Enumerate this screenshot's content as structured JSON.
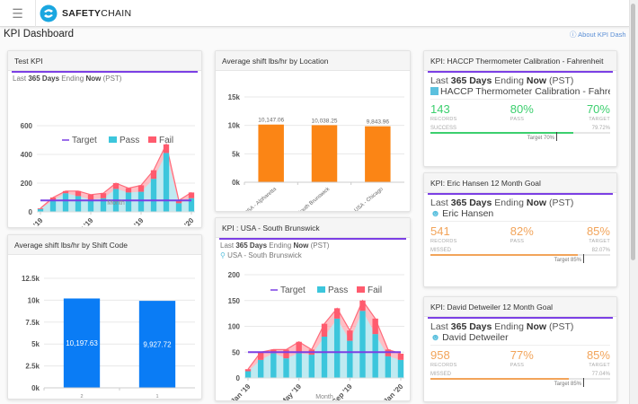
{
  "app": {
    "brand_bold": "SAFETY",
    "brand_light": "CHAIN",
    "menu_icon": "hamburger-icon",
    "logo_icon": "safetychain-logo-icon"
  },
  "page": {
    "title": "KPI Dashboard",
    "about_label": "About KPI Dash",
    "about_icon": "help-circle-icon"
  },
  "colors": {
    "accent": "#7b3fe4",
    "pass": "#3cc6dc",
    "fail": "#ff5b6e",
    "target": "#7b3fe4",
    "blue_bar": "#0a7cf5",
    "orange_bar": "#fb8515",
    "success": "#3ccf6e",
    "missed": "#f2a45a"
  },
  "cards": {
    "test_kpi": {
      "title": "Test KPI",
      "range_prefix": "Last",
      "range_bold": "365 Days",
      "range_mid": "Ending",
      "range_end": "Now",
      "tz": "(PST)"
    },
    "shift_code": {
      "title": "Average shift lbs/hr by Shift Code"
    },
    "location": {
      "title": "Average shift lbs/hr by Location"
    },
    "south_brunswick": {
      "title": "KPI : USA - South Brunswick",
      "range_prefix": "Last",
      "range_bold": "365 Days",
      "range_mid": "Ending",
      "range_end": "Now",
      "tz": "(PST)",
      "location": "USA - South Brunswick",
      "location_icon": "map-pin-icon"
    },
    "haccp": {
      "title": "KPI: HACCP Thermometer Calibration - Fahrenheit",
      "range_prefix": "Last",
      "range_bold": "365 Days",
      "range_mid": "Ending",
      "range_end": "Now",
      "tz": "(PST)",
      "subject": "HACCP Thermometer Calibration - Fahrenheit",
      "subject_icon": "form-icon",
      "records": "143",
      "records_label": "RECORDS",
      "pass": "80%",
      "pass_label": "PASS",
      "target": "70%",
      "target_label": "TARGET",
      "status": "SUCCESS",
      "progress_text": "79.72%",
      "progress": 79.72,
      "target_value": 70,
      "target_marker": "Target 70%"
    },
    "eric": {
      "title": "KPI: Eric Hansen 12 Month Goal",
      "range_prefix": "Last",
      "range_bold": "365 Days",
      "range_mid": "Ending",
      "range_end": "Now",
      "tz": "(PST)",
      "subject": "Eric Hansen",
      "subject_icon": "user-icon",
      "records": "541",
      "records_label": "RECORDS",
      "pass": "82%",
      "pass_label": "PASS",
      "target": "85%",
      "target_label": "TARGET",
      "status": "MISSED",
      "progress_text": "82.07%",
      "progress": 82.07,
      "target_value": 85,
      "target_marker": "Target 85%"
    },
    "david": {
      "title": "KPI: David Detweiler 12 Month Goal",
      "range_prefix": "Last",
      "range_bold": "365 Days",
      "range_mid": "Ending",
      "range_end": "Now",
      "tz": "(PST)",
      "subject": "David Detweiler",
      "subject_icon": "user-icon",
      "records": "958",
      "records_label": "RECORDS",
      "pass": "77%",
      "pass_label": "PASS",
      "target": "85%",
      "target_label": "TARGET",
      "status": "MISSED",
      "progress_text": "77.04%",
      "progress": 77.04,
      "target_value": 85,
      "target_marker": "Target 85%"
    }
  },
  "chart_data": [
    {
      "id": "test_kpi",
      "type": "bar",
      "title": "Test KPI",
      "xlabel": "Month",
      "ylabel": "",
      "ylim": [
        0,
        600
      ],
      "yticks": [
        0,
        200,
        400,
        600
      ],
      "categories": [
        "Jan '19",
        "Feb '19",
        "Mar '19",
        "Apr '19",
        "May '19",
        "Jun '19",
        "Jul '19",
        "Aug '19",
        "Sep '19",
        "Oct '19",
        "Nov '19",
        "Dec '19",
        "Jan '20"
      ],
      "xtick_labels": [
        "Jan '19",
        "May '19",
        "Sep '19",
        "Jan '20"
      ],
      "legend": [
        "Target",
        "Pass",
        "Fail"
      ],
      "legend_position": "top",
      "series": [
        {
          "name": "Pass",
          "values": [
            20,
            80,
            130,
            110,
            85,
            95,
            160,
            135,
            140,
            230,
            410,
            60,
            95
          ]
        },
        {
          "name": "Fail",
          "values": [
            5,
            20,
            15,
            35,
            35,
            35,
            40,
            30,
            45,
            60,
            60,
            20,
            40
          ]
        },
        {
          "name": "Target",
          "values": [
            80,
            80,
            80,
            80,
            80,
            80,
            80,
            80,
            80,
            80,
            80,
            80,
            80
          ]
        }
      ],
      "grid": true
    },
    {
      "id": "shift_code",
      "type": "bar",
      "title": "Average shift lbs/hr by Shift Code",
      "xlabel": "Shift Code",
      "ylabel": "",
      "ylim": [
        0,
        12500
      ],
      "yticks": [
        "0k",
        "2.5k",
        "5k",
        "7.5k",
        "10k",
        "12.5k"
      ],
      "categories": [
        "2",
        "1"
      ],
      "values": [
        10197.63,
        9927.72
      ],
      "data_labels": [
        "10,197.63",
        "9,927.72"
      ],
      "grid": true
    },
    {
      "id": "location",
      "type": "bar",
      "title": "Average shift lbs/hr by Location",
      "xlabel": "",
      "ylabel": "",
      "ylim": [
        0,
        15000
      ],
      "yticks": [
        "0k",
        "5k",
        "10k",
        "15k"
      ],
      "categories": [
        "USA - Alpharetta",
        "USA - South Brunswick",
        "USA - Chicago"
      ],
      "values": [
        10147.06,
        10038.25,
        9843.96
      ],
      "data_labels": [
        "10,147.06",
        "10,038.25",
        "9,843.96"
      ],
      "grid": true
    },
    {
      "id": "south_brunswick",
      "type": "bar",
      "title": "KPI : USA - South Brunswick",
      "xlabel": "Month",
      "ylabel": "",
      "ylim": [
        0,
        200
      ],
      "yticks": [
        0,
        50,
        100,
        150,
        200
      ],
      "categories": [
        "Jan '19",
        "Feb '19",
        "Mar '19",
        "Apr '19",
        "May '19",
        "Jun '19",
        "Jul '19",
        "Aug '19",
        "Sep '19",
        "Oct '19",
        "Nov '19",
        "Dec '19",
        "Jan '20"
      ],
      "xtick_labels": [
        "Jan '19",
        "May '19",
        "Sep '19",
        "Jan '20"
      ],
      "legend": [
        "Target",
        "Pass",
        "Fail"
      ],
      "legend_position": "top",
      "series": [
        {
          "name": "Pass",
          "values": [
            13,
            35,
            48,
            38,
            48,
            45,
            80,
            115,
            72,
            130,
            85,
            42,
            35
          ]
        },
        {
          "name": "Fail",
          "values": [
            4,
            15,
            7,
            17,
            22,
            10,
            25,
            20,
            20,
            20,
            30,
            13,
            12
          ]
        },
        {
          "name": "Target",
          "values": [
            50,
            50,
            50,
            50,
            50,
            50,
            50,
            50,
            50,
            50,
            50,
            50,
            50
          ]
        }
      ],
      "grid": true
    }
  ]
}
